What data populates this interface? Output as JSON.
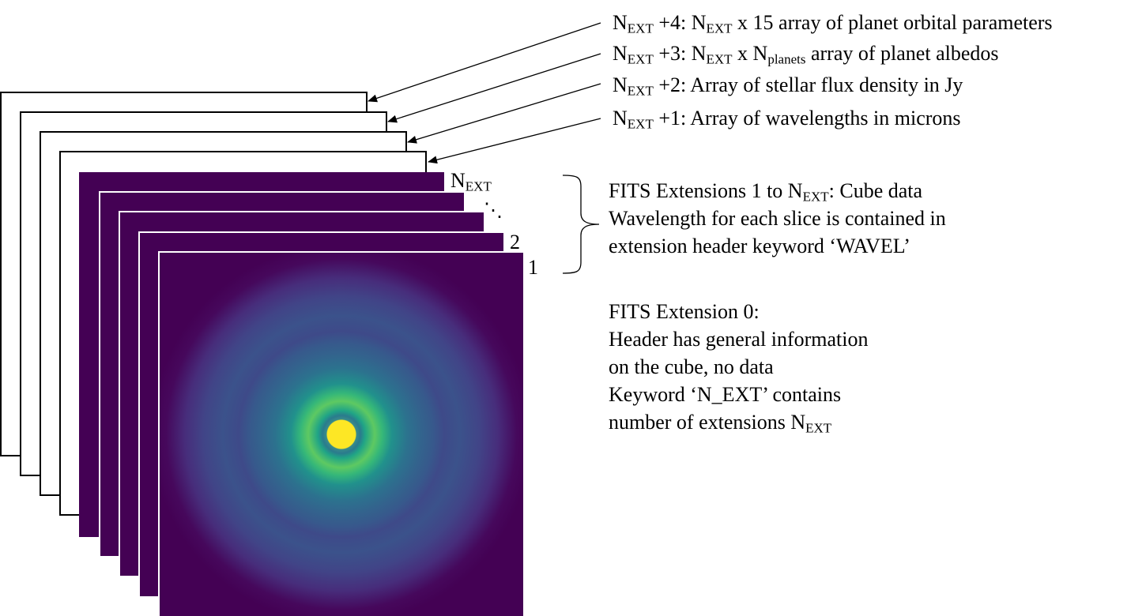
{
  "header_labels": {
    "ext4": {
      "prefix": "N",
      "sub1": "EXT",
      "mid": " +4: N",
      "sub2": "EXT",
      "rest": " x 15 array of planet orbital parameters"
    },
    "ext3": {
      "prefix": "N",
      "sub1": "EXT",
      "mid": " +3: N",
      "sub2": "EXT",
      "mid2": " x N",
      "sub3": "planets",
      "rest": " array of planet albedos"
    },
    "ext2": {
      "prefix": "N",
      "sub1": "EXT",
      "rest": " +2: Array of stellar flux density in Jy"
    },
    "ext1": {
      "prefix": "N",
      "sub1": "EXT",
      "rest": " +1: Array of wavelengths in microns"
    }
  },
  "slice_labels": {
    "next": {
      "prefix": "N",
      "sub": "EXT"
    },
    "dots": "⋱",
    "two": "2",
    "one": "1"
  },
  "cube_block": {
    "line1_prefix": "FITS Extensions 1 to N",
    "line1_sub": "EXT",
    "line1_rest": ": Cube data",
    "line2": "Wavelength for each slice is contained in",
    "line3": "extension header keyword ‘WAVEL’"
  },
  "ext0_block": {
    "line1": "FITS Extension 0:",
    "line2": "Header has general information",
    "line3": "on the cube, no data",
    "line4": "Keyword ‘N_EXT’ contains",
    "line5_prefix": "number of extensions N",
    "line5_sub": "EXT"
  },
  "colors": {
    "slice_fill": "#440154",
    "core": "#fde725",
    "ring": "#5ec962",
    "halo": "#21918c"
  }
}
